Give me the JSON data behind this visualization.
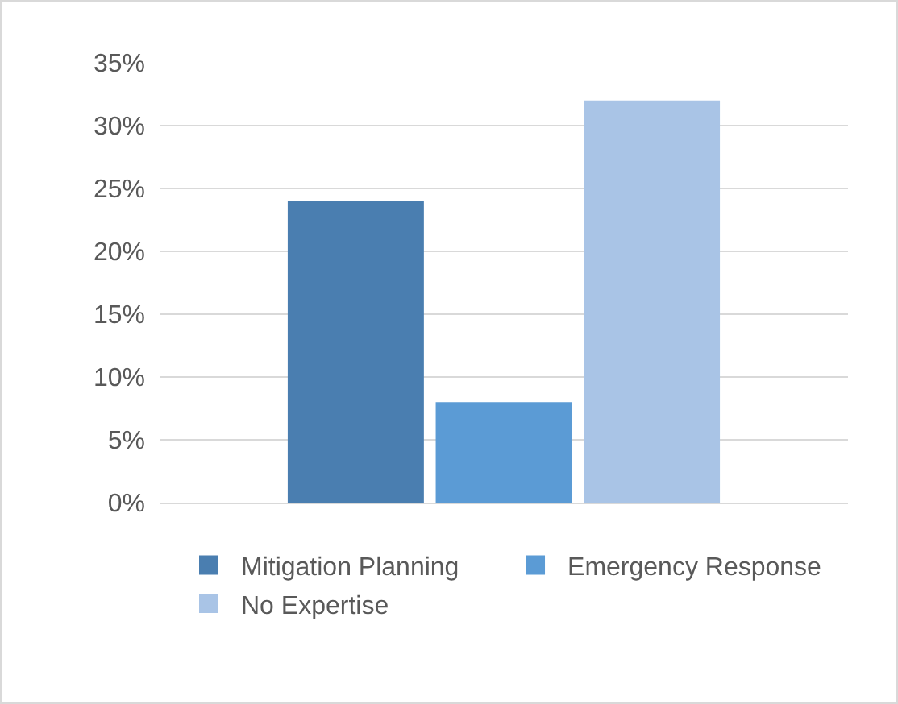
{
  "chart_data": {
    "type": "bar",
    "categories": [
      null
    ],
    "series": [
      {
        "name": "Mitigation Planning",
        "color": "#4a7eb0",
        "values": [
          24
        ]
      },
      {
        "name": "Emergency Response",
        "color": "#5b9bd5",
        "values": [
          8
        ]
      },
      {
        "name": "No Expertise",
        "color": "#a9c4e6",
        "values": [
          32
        ]
      }
    ],
    "ylim": [
      0,
      35
    ],
    "yticks": [
      {
        "value": 0,
        "label": "0%"
      },
      {
        "value": 5,
        "label": "5%"
      },
      {
        "value": 10,
        "label": "10%"
      },
      {
        "value": 15,
        "label": "15%"
      },
      {
        "value": 20,
        "label": "20%"
      },
      {
        "value": 25,
        "label": "25%"
      },
      {
        "value": 30,
        "label": "30%"
      },
      {
        "value": 35,
        "label": "35%"
      }
    ],
    "grid": "y",
    "legend": "bottom"
  }
}
